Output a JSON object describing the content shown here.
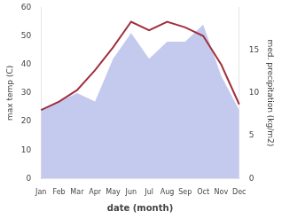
{
  "chart_data": {
    "type": "line",
    "x_label": "date (month)",
    "y_label": "max temp (C)",
    "y2_label": "med. precipitation (kg/m2)",
    "categories": [
      "Jan",
      "Feb",
      "Mar",
      "Apr",
      "May",
      "Jun",
      "Jul",
      "Aug",
      "Sep",
      "Oct",
      "Nov",
      "Dec"
    ],
    "series": [
      {
        "type": "line",
        "color": "#a03040",
        "values": [
          24,
          27,
          31,
          38,
          46,
          55,
          52,
          55,
          53,
          50,
          40,
          26
        ]
      },
      {
        "type": "area",
        "color": "#b0b8e8",
        "axis": "y2",
        "values": [
          8,
          9,
          10,
          9,
          14,
          17,
          14,
          16,
          16,
          18,
          12,
          8
        ]
      }
    ],
    "ylim": [
      0,
      60
    ],
    "yticks": [
      0,
      10,
      20,
      30,
      40,
      50,
      60
    ],
    "y2lim": [
      0,
      20
    ],
    "y2ticks": [
      0,
      5,
      10,
      15
    ],
    "grid": false
  }
}
